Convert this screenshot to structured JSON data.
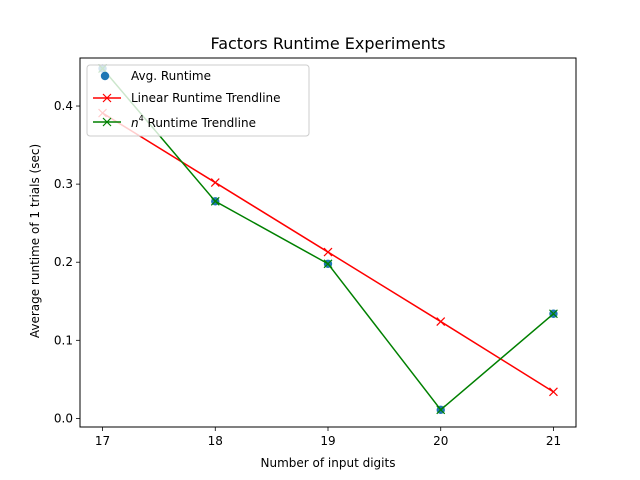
{
  "chart_data": {
    "type": "line",
    "title": "Factors Runtime Experiments",
    "xlabel": "Number of input digits",
    "ylabel": "Average runtime of 1 trials (sec)",
    "x": [
      17,
      18,
      19,
      20,
      21
    ],
    "xlim": [
      16.8,
      21.2
    ],
    "ylim": [
      -0.011,
      0.4615
    ],
    "x_ticks": [
      "17",
      "18",
      "19",
      "20",
      "21"
    ],
    "y_ticks": [
      0.0,
      0.1,
      0.2,
      0.3,
      0.4
    ],
    "y_tick_labels": [
      "0.0",
      "0.1",
      "0.2",
      "0.3",
      "0.4"
    ],
    "grid": false,
    "legend_position": "top-left",
    "series": [
      {
        "name": "Avg. Runtime",
        "style": "scatter",
        "marker": "circle",
        "color": "#1f77b4",
        "values": [
          0.448,
          0.278,
          0.198,
          0.011,
          0.134
        ]
      },
      {
        "name": "Linear Runtime Trendline",
        "style": "line",
        "marker": "x",
        "color": "#ff0000",
        "values": [
          0.391,
          0.302,
          0.213,
          0.124,
          0.034
        ]
      },
      {
        "name": "n⁴ Runtime Trendline",
        "name_base": "n",
        "name_sup": "4",
        "name_rest": " Runtime Trendline",
        "style": "line",
        "marker": "x",
        "color": "#008000",
        "values": [
          0.448,
          0.278,
          0.198,
          0.011,
          0.134
        ]
      }
    ]
  }
}
